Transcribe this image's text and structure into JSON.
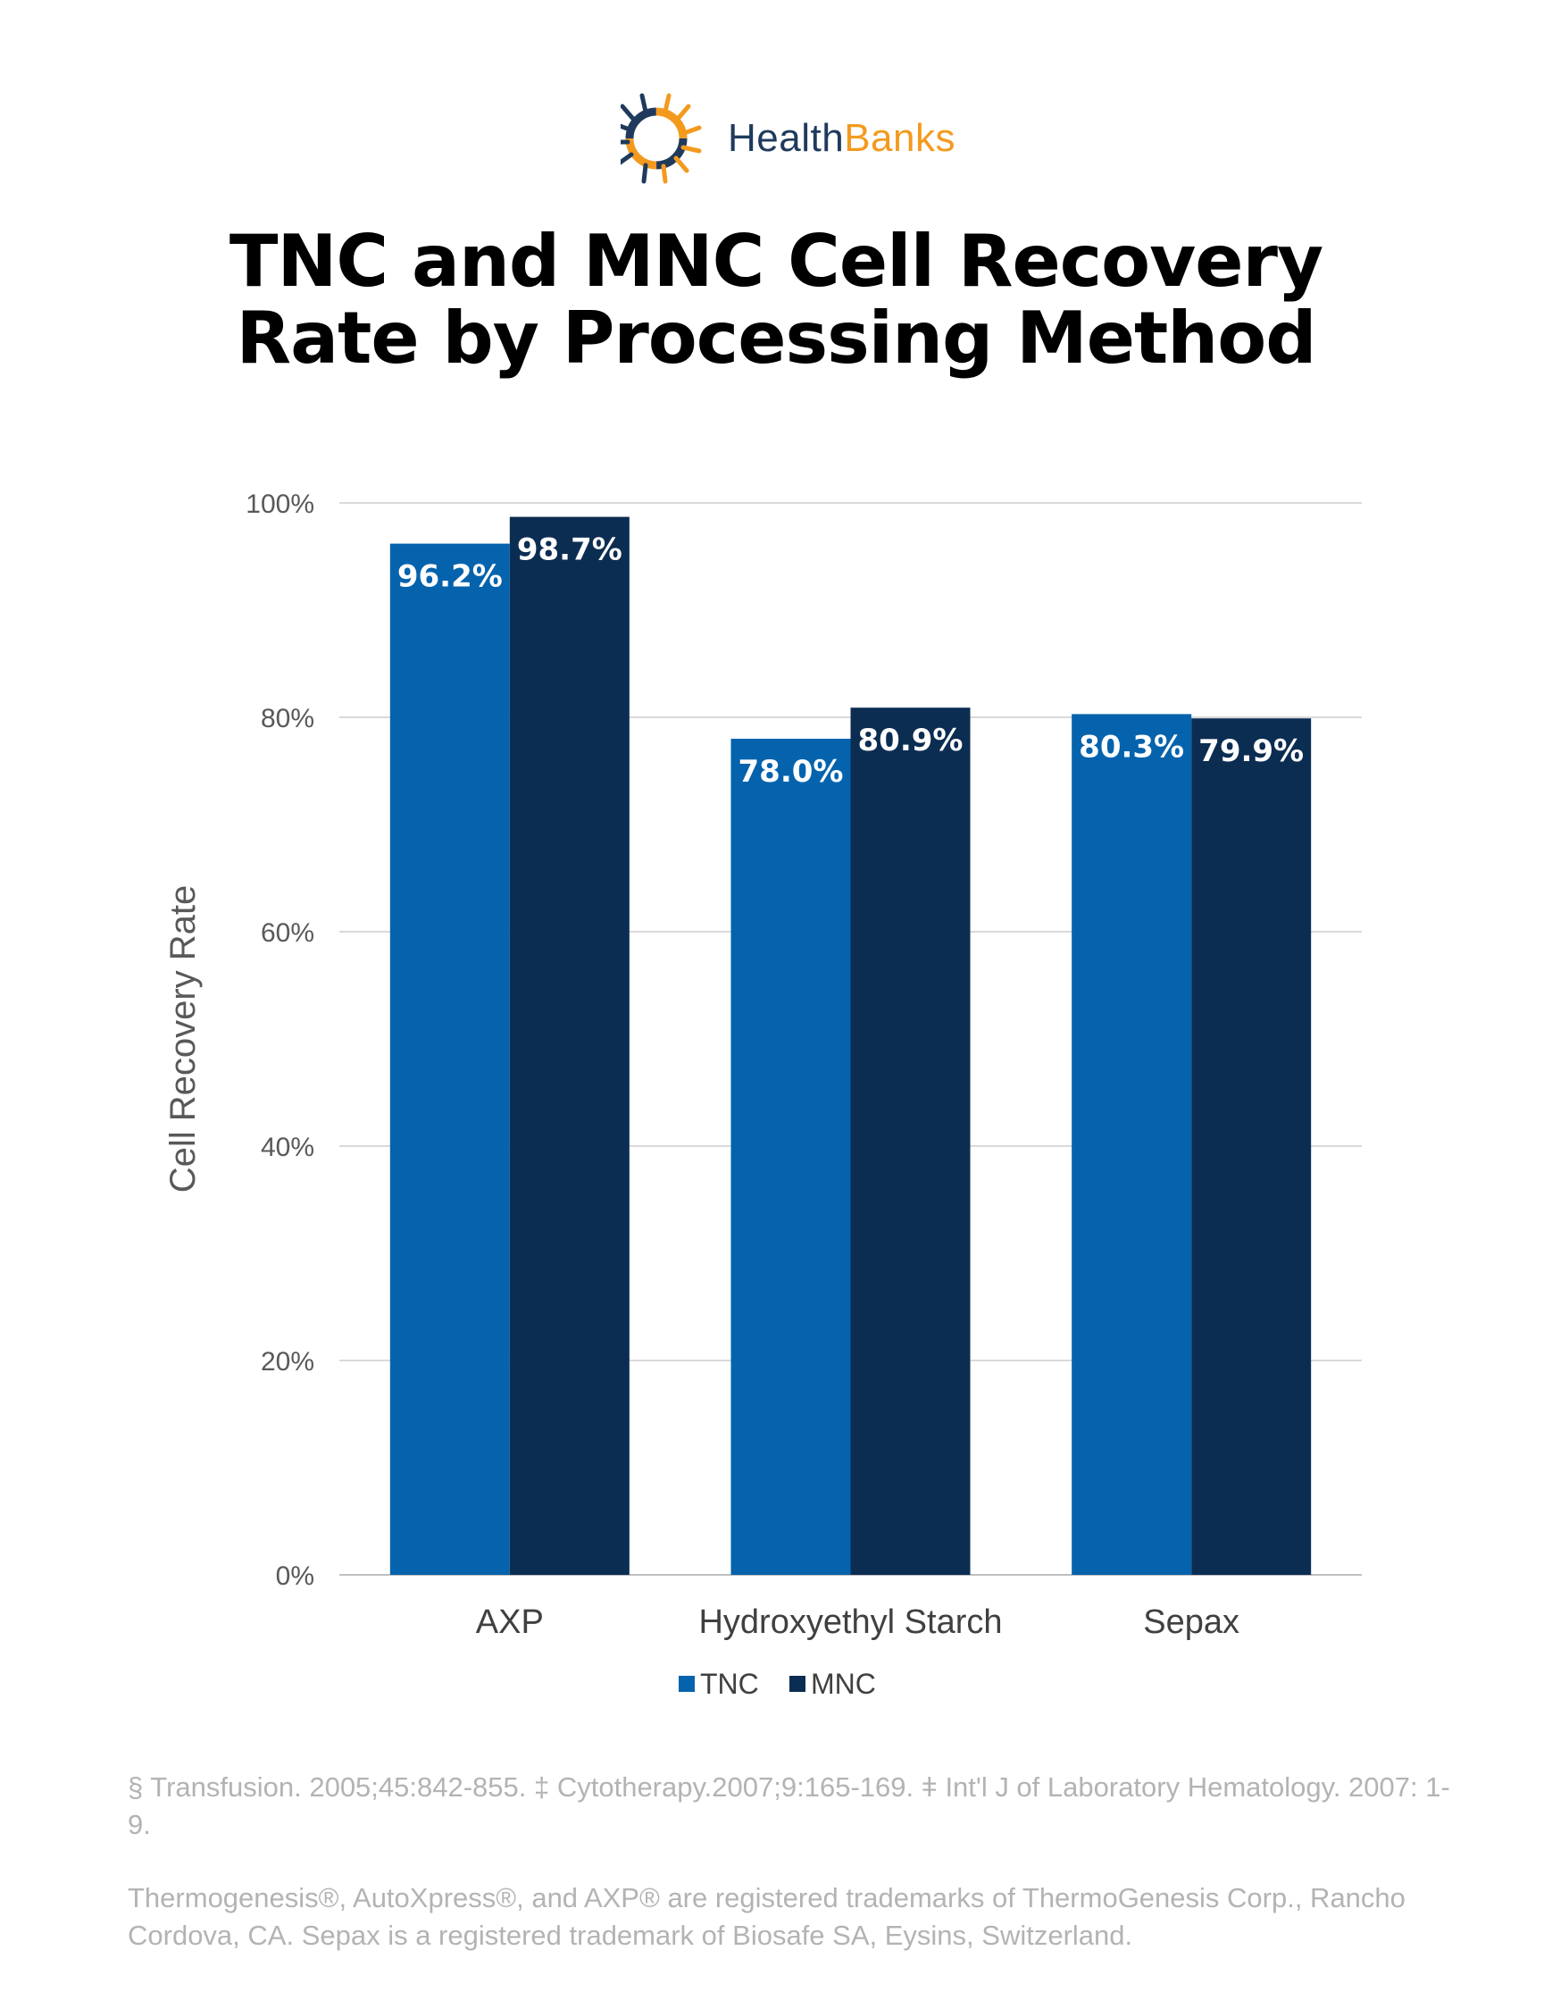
{
  "brand": {
    "name_part1": "Health",
    "name_part2": "Banks",
    "colors": {
      "navy": "#1f3a5c",
      "orange": "#f39a1e"
    }
  },
  "title": {
    "line1": "TNC and MNC Cell Recovery",
    "line2": "Rate by Processing Method"
  },
  "chart_data": {
    "type": "bar",
    "categories": [
      "AXP",
      "Hydroxyethyl Starch",
      "Sepax"
    ],
    "series": [
      {
        "name": "TNC",
        "values": [
          96.2,
          78.0,
          80.3
        ],
        "labels": [
          "96.2%",
          "78.0%",
          "80.3%"
        ],
        "color": "#0563ad"
      },
      {
        "name": "MNC",
        "values": [
          98.7,
          80.9,
          79.9
        ],
        "labels": [
          "98.7%",
          "80.9%",
          "79.9%"
        ],
        "color": "#0c2d52"
      }
    ],
    "ylabel": "Cell Recovery Rate",
    "xlabel": "",
    "ylim": [
      0,
      100
    ],
    "yticks": [
      0,
      20,
      40,
      60,
      80,
      100
    ],
    "ytick_labels": [
      "0%",
      "20%",
      "40%",
      "60%",
      "80%",
      "100%"
    ],
    "grid": true,
    "legend": "bottom-center"
  },
  "footnotes": {
    "citations": "§ Transfusion. 2005;45:842-855. ‡ Cytotherapy.2007;9:165-169. ǂ Int'l J of Laboratory Hematology. 2007: 1-9.",
    "trademarks": "Thermogenesis®, AutoXpress®, and AXP® are registered trademarks of ThermoGenesis Corp., Rancho Cordova, CA. Sepax is a registered trademark of Biosafe SA, Eysins, Switzerland."
  }
}
